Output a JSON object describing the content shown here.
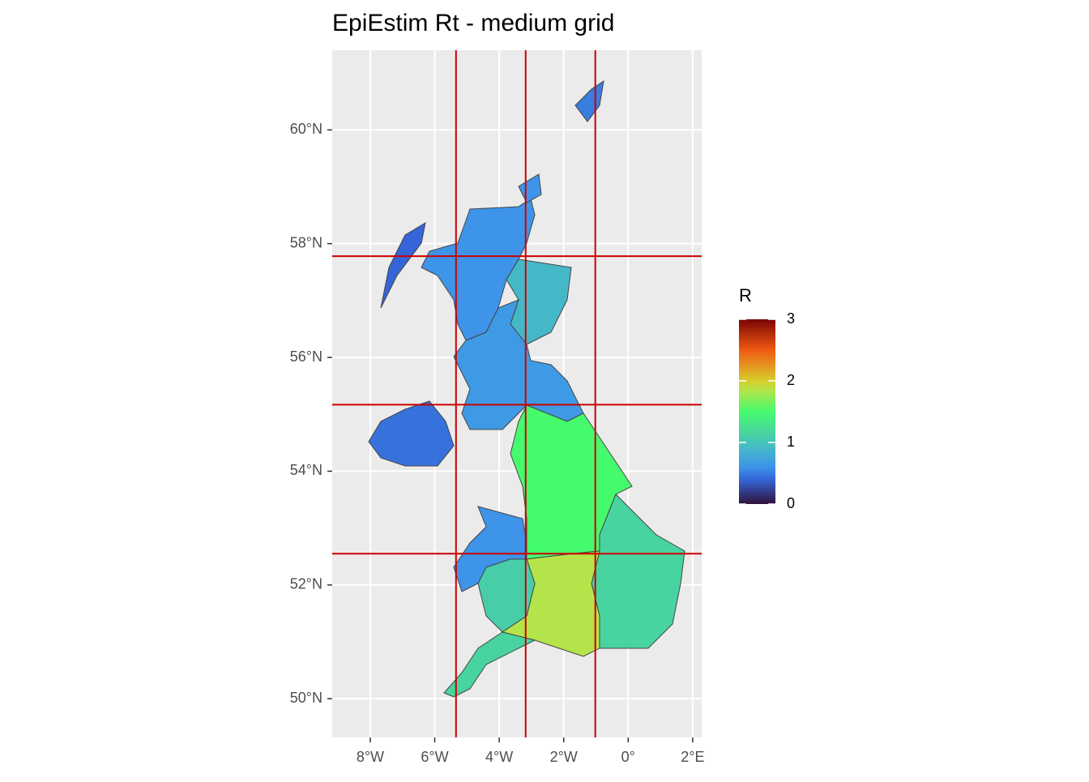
{
  "chart_data": {
    "type": "choropleth",
    "title": "EpiEstim Rt - medium grid",
    "xlim": [
      -9.18,
      2.28
    ],
    "ylim": [
      49.32,
      61.4
    ],
    "xticks": [
      {
        "value": -8,
        "label": "8°W"
      },
      {
        "value": -6,
        "label": "6°W"
      },
      {
        "value": -4,
        "label": "4°W"
      },
      {
        "value": -2,
        "label": "2°W"
      },
      {
        "value": 0,
        "label": "0°"
      },
      {
        "value": 2,
        "label": "2°E"
      }
    ],
    "yticks": [
      {
        "value": 50,
        "label": "50°N"
      },
      {
        "value": 52,
        "label": "52°N"
      },
      {
        "value": 54,
        "label": "54°N"
      },
      {
        "value": 56,
        "label": "56°N"
      },
      {
        "value": 58,
        "label": "58°N"
      },
      {
        "value": 60,
        "label": "60°N"
      }
    ],
    "grid": true,
    "values": [
      0.6,
      0.9,
      0.65,
      1.5,
      1.15,
      0.6,
      1.85,
      1.1,
      1.15,
      0.45,
      0.4,
      0.5,
      0.6
    ],
    "grid_lines": {
      "lon": [
        -5.34,
        -3.18,
        -1.02
      ],
      "lat": [
        57.78,
        55.17,
        52.55
      ],
      "color": "#cc0000"
    },
    "legend": {
      "title": "R",
      "lim": [
        0,
        3
      ],
      "ticks": [
        0,
        1,
        2,
        3
      ],
      "position": "right"
    },
    "colorscale": {
      "values": [
        0,
        0.4,
        0.6,
        0.9,
        1.15,
        1.5,
        1.85,
        2,
        2.5,
        3
      ],
      "colors": [
        "#30123b",
        "#3565d8",
        "#3d94e9",
        "#45b8c8",
        "#48d4a0",
        "#46fa6e",
        "#b5e44a",
        "#d8ce2c",
        "#f05a12",
        "#7a0403"
      ]
    }
  }
}
